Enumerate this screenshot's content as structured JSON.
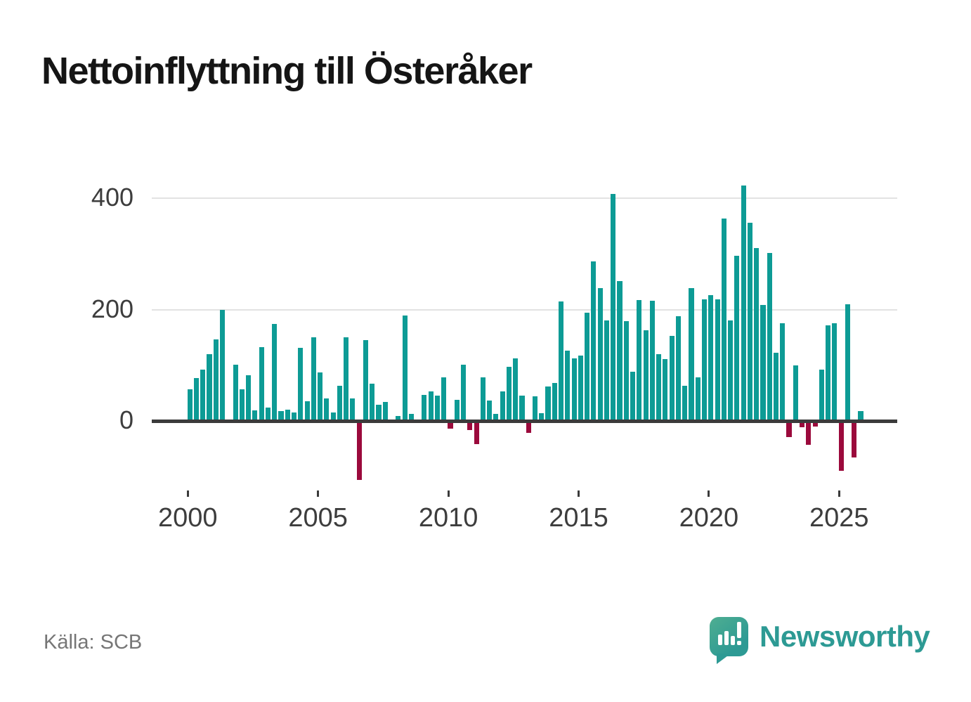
{
  "title": "Nettoinflyttning till Österåker",
  "source": "Källa: SCB",
  "brand": {
    "name": "Newsworthy"
  },
  "colors": {
    "positive": "#0d9b95",
    "negative": "#9b0a3c",
    "grid": "#e2e2e2",
    "axis": "#3b3b3b",
    "tick_text": "#3d3d3d",
    "brand_teal": "#2d9a94"
  },
  "chart_data": {
    "type": "bar",
    "title": "Nettoinflyttning till Österåker",
    "x_start": "2000Q1",
    "x_step": "quarter",
    "x_ticks": [
      2000,
      2005,
      2010,
      2015,
      2020,
      2025
    ],
    "y_ticks": [
      0,
      200,
      400
    ],
    "ylim": [
      -120,
      460
    ],
    "grid": "horizontal",
    "legend": "none",
    "values": [
      57,
      77,
      93,
      120,
      147,
      200,
      0,
      101,
      57,
      82,
      19,
      133,
      24,
      174,
      18,
      20,
      16,
      132,
      36,
      151,
      87,
      41,
      15,
      63,
      151,
      41,
      -105,
      145,
      67,
      30,
      35,
      0,
      9,
      189,
      13,
      0,
      47,
      53,
      46,
      78,
      -13,
      38,
      101,
      -16,
      -41,
      78,
      37,
      13,
      53,
      97,
      113,
      46,
      -21,
      45,
      14,
      62,
      69,
      215,
      126,
      113,
      118,
      194,
      286,
      239,
      181,
      408,
      251,
      179,
      89,
      217,
      163,
      216,
      120,
      111,
      153,
      188,
      64,
      239,
      79,
      219,
      226,
      219,
      363,
      181,
      296,
      423,
      356,
      310,
      209,
      302,
      123,
      175,
      -29,
      100,
      -11,
      -43,
      -10,
      92,
      172,
      176,
      -89,
      210,
      -65,
      18
    ]
  }
}
